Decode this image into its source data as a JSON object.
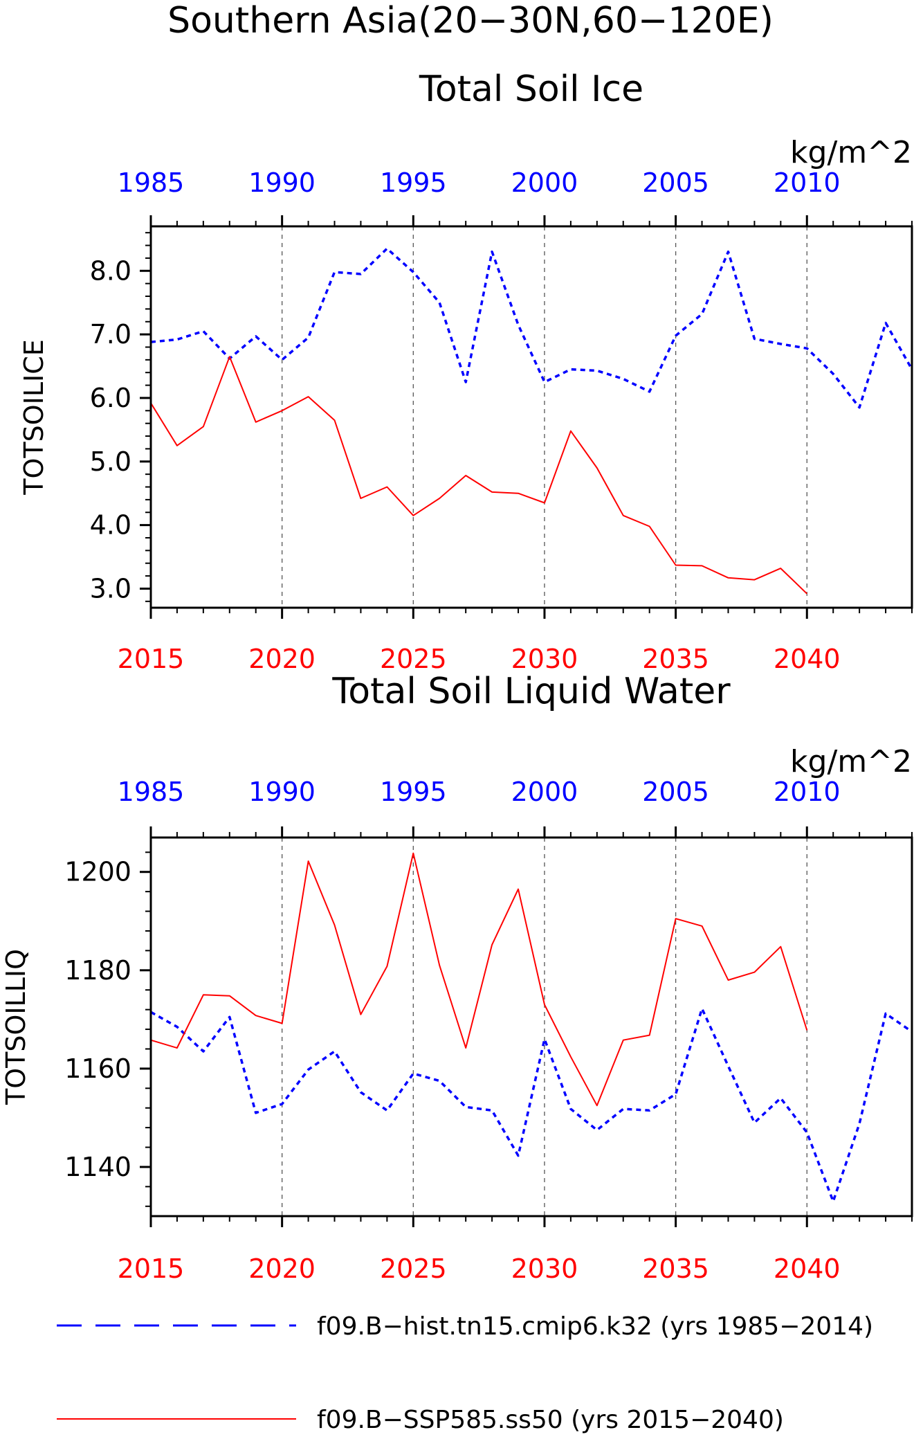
{
  "figure": {
    "title_line1": "Southern Asia(20−30N,60−120E)"
  },
  "colors": {
    "hist": "#0000ff",
    "ssp": "#ff0000",
    "axis": "#000000",
    "grid": "#555555"
  },
  "legend": {
    "entries": [
      {
        "label": "f09.B−hist.tn15.cmip6.k32 (yrs 1985−2014)",
        "color": "#0000ff",
        "style": "dashed"
      },
      {
        "label": "f09.B−SSP585.ss50 (yrs 2015−2040)",
        "color": "#ff0000",
        "style": "solid"
      }
    ]
  },
  "chart_data": [
    {
      "type": "line",
      "title": "Total Soil Ice",
      "ylabel": "TOTSOILICE",
      "units": "kg/m^2",
      "ylim": [
        2.7,
        8.7
      ],
      "yticks": [
        3.0,
        4.0,
        5.0,
        6.0,
        7.0,
        8.0
      ],
      "ytick_labels": [
        "3.0",
        "4.0",
        "5.0",
        "6.0",
        "7.0",
        "8.0"
      ],
      "yminor_step": 0.2,
      "bottom_axis": {
        "range": [
          2015,
          2044
        ],
        "ticks": [
          2015,
          2020,
          2025,
          2030,
          2035,
          2040
        ],
        "labels": [
          "2015",
          "2020",
          "2025",
          "2030",
          "2035",
          "2040"
        ]
      },
      "top_axis": {
        "range": [
          1985,
          2014
        ],
        "ticks": [
          1985,
          1990,
          1995,
          2000,
          2005,
          2010
        ],
        "labels": [
          "1985",
          "1990",
          "1995",
          "2000",
          "2005",
          "2010"
        ]
      },
      "grid_x": [
        2020,
        2025,
        2030,
        2035,
        2040
      ],
      "series": [
        {
          "key": "hist",
          "axis": "top",
          "x": [
            1985,
            1986,
            1987,
            1988,
            1989,
            1990,
            1991,
            1992,
            1993,
            1994,
            1995,
            1996,
            1997,
            1998,
            1999,
            2000,
            2001,
            2002,
            2003,
            2004,
            2005,
            2006,
            2007,
            2008,
            2009,
            2010,
            2011,
            2012,
            2013,
            2014
          ],
          "values": [
            6.88,
            6.92,
            7.05,
            6.62,
            6.97,
            6.6,
            6.95,
            7.98,
            7.95,
            8.35,
            7.98,
            7.5,
            6.25,
            8.3,
            7.15,
            6.25,
            6.45,
            6.43,
            6.3,
            6.1,
            6.98,
            7.32,
            8.3,
            6.93,
            6.85,
            6.78,
            6.38,
            5.85,
            7.18,
            6.45
          ]
        },
        {
          "key": "ssp",
          "axis": "bottom",
          "x": [
            2015,
            2016,
            2017,
            2018,
            2019,
            2020,
            2021,
            2022,
            2023,
            2024,
            2025,
            2026,
            2027,
            2028,
            2029,
            2030,
            2031,
            2032,
            2033,
            2034,
            2035,
            2036,
            2037,
            2038,
            2039,
            2040
          ],
          "values": [
            5.92,
            5.25,
            5.55,
            6.65,
            5.62,
            5.8,
            6.02,
            5.65,
            4.42,
            4.6,
            4.15,
            4.42,
            4.78,
            4.52,
            4.5,
            4.35,
            5.48,
            4.9,
            4.15,
            3.98,
            3.37,
            3.36,
            3.17,
            3.14,
            3.32,
            2.92
          ]
        }
      ]
    },
    {
      "type": "line",
      "title": "Total Soil Liquid Water",
      "ylabel": "TOTSOILLIQ",
      "units": "kg/m^2",
      "ylim": [
        1130,
        1207
      ],
      "yticks": [
        1140,
        1160,
        1180,
        1200
      ],
      "ytick_labels": [
        "1140",
        "1160",
        "1180",
        "1200"
      ],
      "yminor_step": 4,
      "bottom_axis": {
        "range": [
          2015,
          2044
        ],
        "ticks": [
          2015,
          2020,
          2025,
          2030,
          2035,
          2040
        ],
        "labels": [
          "2015",
          "2020",
          "2025",
          "2030",
          "2035",
          "2040"
        ]
      },
      "top_axis": {
        "range": [
          1985,
          2014
        ],
        "ticks": [
          1985,
          1990,
          1995,
          2000,
          2005,
          2010
        ],
        "labels": [
          "1985",
          "1990",
          "1995",
          "2000",
          "2005",
          "2010"
        ]
      },
      "grid_x": [
        2020,
        2025,
        2030,
        2035,
        2040
      ],
      "series": [
        {
          "key": "hist",
          "axis": "top",
          "x": [
            1985,
            1986,
            1987,
            1988,
            1989,
            1990,
            1991,
            1992,
            1993,
            1994,
            1995,
            1996,
            1997,
            1998,
            1999,
            2000,
            2001,
            2002,
            2003,
            2004,
            2005,
            2006,
            2007,
            2008,
            2009,
            2010,
            2011,
            2012,
            2013,
            2014
          ],
          "values": [
            1171.5,
            1168.5,
            1163.5,
            1170.5,
            1151.0,
            1152.8,
            1159.8,
            1163.5,
            1155.2,
            1151.5,
            1159.0,
            1157.5,
            1152.2,
            1151.5,
            1142.3,
            1166.0,
            1151.8,
            1147.5,
            1151.8,
            1151.5,
            1154.8,
            1172.2,
            1160.5,
            1149.0,
            1154.0,
            1147.0,
            1133.0,
            1148.8,
            1171.2,
            1167.5
          ]
        },
        {
          "key": "ssp",
          "axis": "bottom",
          "x": [
            2015,
            2016,
            2017,
            2018,
            2019,
            2020,
            2021,
            2022,
            2023,
            2024,
            2025,
            2026,
            2027,
            2028,
            2029,
            2030,
            2031,
            2032,
            2033,
            2034,
            2035,
            2036,
            2037,
            2038,
            2039,
            2040
          ],
          "values": [
            1165.8,
            1164.2,
            1175.0,
            1174.8,
            1170.8,
            1169.2,
            1202.2,
            1189.2,
            1171.0,
            1180.8,
            1203.8,
            1181.0,
            1164.2,
            1185.2,
            1196.5,
            1173.0,
            1162.4,
            1152.5,
            1165.8,
            1166.8,
            1190.5,
            1189.0,
            1178.0,
            1179.6,
            1184.8,
            1167.8
          ]
        }
      ]
    }
  ]
}
